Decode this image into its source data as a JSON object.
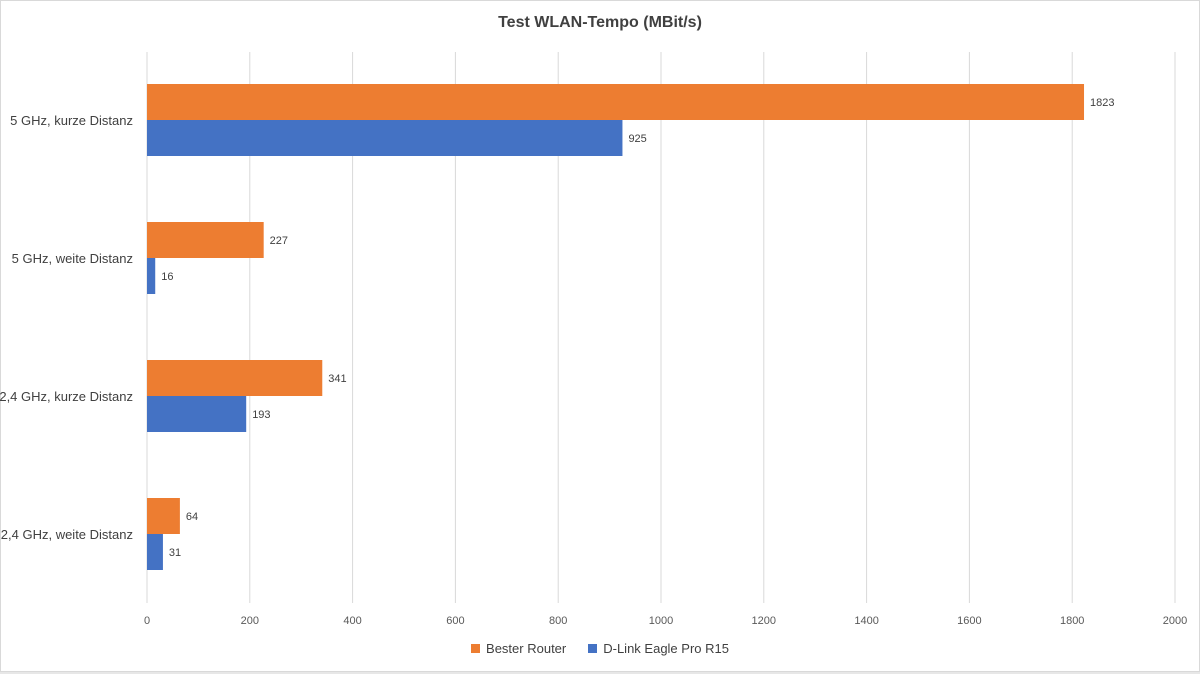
{
  "chart_data": {
    "type": "bar",
    "orientation": "horizontal",
    "title": "Test WLAN-Tempo (MBit/s)",
    "categories": [
      "5 GHz, kurze Distanz",
      "5 GHz, weite Distanz",
      "2,4 GHz, kurze Distanz",
      "2,4 GHz, weite Distanz"
    ],
    "series": [
      {
        "name": "Bester Router",
        "color": "#ED7D31",
        "values": [
          1823,
          227,
          341,
          64
        ]
      },
      {
        "name": "D-Link Eagle Pro R15",
        "color": "#4472C4",
        "values": [
          925,
          16,
          193,
          31
        ]
      }
    ],
    "xlim": [
      0,
      2000
    ],
    "xticks": [
      0,
      200,
      400,
      600,
      800,
      1000,
      1200,
      1400,
      1600,
      1800,
      2000
    ],
    "xlabel": "",
    "ylabel": "",
    "grid": true,
    "legend_position": "bottom"
  }
}
